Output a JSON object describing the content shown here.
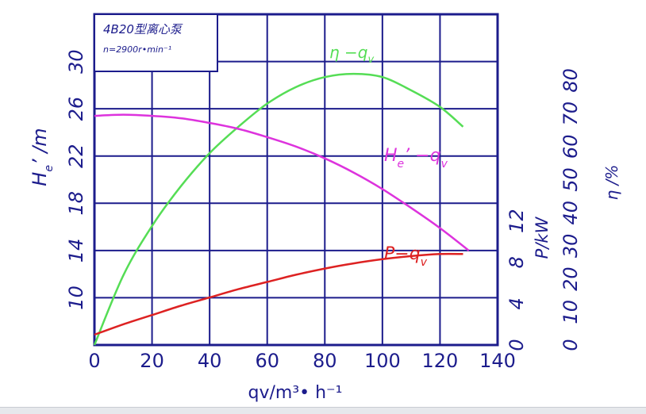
{
  "chart_data": {
    "type": "line",
    "title": "4B20型离心泵",
    "subtitle": "n=2900r•min⁻¹",
    "xlabel": "qv/m³• h⁻¹",
    "xlim": [
      0,
      140
    ],
    "x_ticks": [
      "0",
      "20",
      "40",
      "60",
      "80",
      "100",
      "120",
      "140"
    ],
    "left_axis": {
      "label_main": "H",
      "label_sub": "e",
      "label_tail": "’ /m",
      "ylim": [
        6,
        34
      ],
      "ticks": [
        "10",
        "14",
        "18",
        "22",
        "26",
        "30"
      ]
    },
    "right_axis_power": {
      "label": "P/kW",
      "ylim": [
        0,
        32
      ],
      "ticks": [
        "0",
        "4",
        "8",
        "12"
      ]
    },
    "right_axis_efficiency": {
      "label": "η /%",
      "ylim": [
        0,
        100
      ],
      "ticks": [
        "0",
        "10",
        "20",
        "30",
        "40",
        "50",
        "60",
        "70",
        "80"
      ]
    },
    "grid": true,
    "series": [
      {
        "name_main": "η",
        "name_tail": " −q",
        "name_sub": "v",
        "axis": "efficiency",
        "color": "#55dd55",
        "x": [
          0,
          10,
          20,
          30,
          40,
          50,
          60,
          70,
          80,
          90,
          100,
          110,
          120,
          128
        ],
        "y": [
          0,
          21,
          36,
          48,
          58,
          66,
          73,
          78,
          81,
          82,
          81,
          77,
          72,
          66
        ]
      },
      {
        "name_main": "H",
        "name_sub": "e",
        "name_tail": "’ −q",
        "name_sub2": "v",
        "axis": "head",
        "color": "#dd33dd",
        "x": [
          0,
          10,
          20,
          30,
          40,
          50,
          60,
          70,
          80,
          90,
          100,
          110,
          120,
          130
        ],
        "y": [
          25.4,
          25.5,
          25.4,
          25.2,
          24.8,
          24.3,
          23.6,
          22.8,
          21.8,
          20.6,
          19.2,
          17.6,
          15.9,
          14.0
        ]
      },
      {
        "name_main": "P",
        "name_tail": "−q",
        "name_sub": "v",
        "axis": "power",
        "color": "#dd2222",
        "x": [
          0,
          10,
          20,
          30,
          40,
          50,
          60,
          70,
          80,
          90,
          100,
          110,
          120,
          128
        ],
        "y": [
          1.0,
          2.0,
          2.9,
          3.8,
          4.6,
          5.4,
          6.1,
          6.8,
          7.4,
          7.9,
          8.3,
          8.6,
          8.8,
          8.8
        ]
      }
    ]
  }
}
